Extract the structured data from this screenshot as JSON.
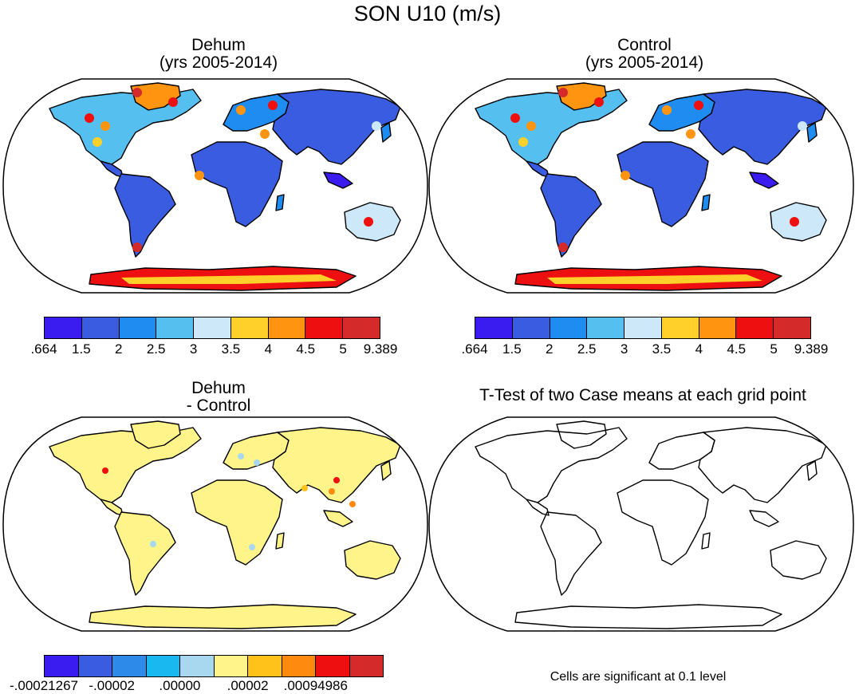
{
  "figure": {
    "title": "SON U10 (m/s)"
  },
  "panels": [
    {
      "id": "dehum",
      "title_line1": "Dehum",
      "title_line2": "(yrs 2005-2014)"
    },
    {
      "id": "control",
      "title_line1": "Control",
      "title_line2": "(yrs 2005-2014)"
    },
    {
      "id": "difference",
      "title_line1": "Dehum",
      "title_line2": "- Control"
    },
    {
      "id": "ttest",
      "title_line1": "T-Test of two Case means at each grid point",
      "note": "Cells are significant at 0.1 level"
    }
  ],
  "colorbars": {
    "wind": {
      "colors": [
        "#3b1cf0",
        "#3a5ce0",
        "#1e8cf0",
        "#55bff0",
        "#cde8f8",
        "#ffcf2a",
        "#ff9410",
        "#ee1010",
        "#d42a2a"
      ],
      "labels": [
        ".664",
        "1.5",
        "2",
        "2.5",
        "3",
        "3.5",
        "4",
        "4.5",
        "5",
        "9.389"
      ]
    },
    "diff": {
      "colors": [
        "#3b1cf0",
        "#3a5ce0",
        "#2e8ae8",
        "#1ab8f0",
        "#a8d8f0",
        "#fff48a",
        "#ffc21a",
        "#ff8a10",
        "#ee1010",
        "#d42a2a"
      ],
      "labels": [
        "-.00021267",
        "-.00002",
        ".00000",
        ".00002",
        ".00094986"
      ]
    }
  }
}
